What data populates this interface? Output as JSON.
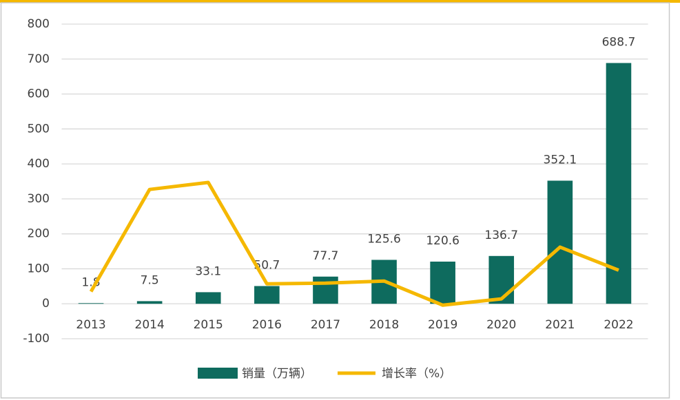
{
  "chart_data": {
    "type": "bar",
    "categories": [
      "2013",
      "2014",
      "2015",
      "2016",
      "2017",
      "2018",
      "2019",
      "2020",
      "2021",
      "2022"
    ],
    "series": [
      {
        "name": "销量（万辆）",
        "type": "bar",
        "color": "#0e6b5e",
        "values": [
          1.8,
          7.5,
          33.1,
          50.7,
          77.7,
          125.6,
          120.6,
          136.7,
          352.1,
          688.7
        ]
      },
      {
        "name": "增长率（%）",
        "type": "line",
        "color": "#f5b800",
        "values": [
          35,
          327,
          347,
          57,
          59,
          65,
          -4,
          14,
          162,
          96
        ]
      }
    ],
    "ylim": [
      -100,
      800
    ],
    "yticks": [
      -100,
      0,
      100,
      200,
      300,
      400,
      500,
      600,
      700,
      800
    ],
    "grid": true,
    "legend": "bottom"
  }
}
